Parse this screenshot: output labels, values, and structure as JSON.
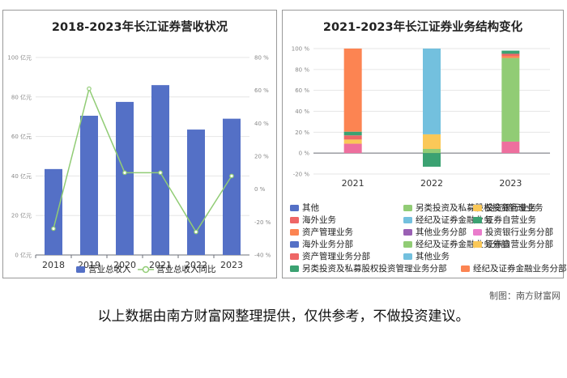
{
  "charts": [
    {
      "title": "2018-2023年长江证券营收状况",
      "type": "bar+line",
      "categories": [
        "2018",
        "2019",
        "2020",
        "2021",
        "2022",
        "2023"
      ],
      "y_ticks": [
        "0 亿元",
        "20 亿元",
        "40 亿元",
        "60 亿元",
        "80 亿元",
        "100 亿元"
      ],
      "y2_ticks": [
        "-40 %",
        "-20 %",
        "0 %",
        "20 %",
        "40 %",
        "60 %",
        "80 %"
      ],
      "ylim": [
        0,
        100
      ],
      "y2lim": [
        -40,
        80
      ],
      "series": [
        {
          "name": "营业总收入",
          "kind": "bar",
          "color": "#5470c6",
          "values": [
            43.5,
            70.5,
            77.5,
            86,
            63.5,
            69
          ]
        },
        {
          "name": "营业总收入同比",
          "kind": "line",
          "color": "#91cc75",
          "values": [
            -24,
            61,
            10,
            10,
            -26,
            8
          ]
        }
      ]
    },
    {
      "title": "2021-2023年长江证券业务结构变化",
      "type": "stacked-bar",
      "categories": [
        "2021",
        "2022",
        "2023"
      ],
      "y_ticks": [
        "-20 %",
        "0 %",
        "20 %",
        "40 %",
        "60 %",
        "80 %",
        "100 %"
      ],
      "ylim": [
        -20,
        100
      ],
      "stacks": [
        [
          {
            "color": "#ee6f9e",
            "value": 9
          },
          {
            "color": "#fac858",
            "value": 4
          },
          {
            "color": "#ee6666",
            "value": 4
          },
          {
            "color": "#3ba272",
            "value": 3.5
          },
          {
            "color": "#fc8452",
            "value": 79.5
          }
        ],
        [
          {
            "color": "#91cc75",
            "value": 4
          },
          {
            "color": "#fac858",
            "value": 14
          },
          {
            "color": "#73c0de",
            "value": 82
          },
          {
            "color": "#3ba272",
            "value": -13
          }
        ],
        [
          {
            "color": "#ee6f9e",
            "value": 11
          },
          {
            "color": "#91cc75",
            "value": 80
          },
          {
            "color": "#fc8452",
            "value": 2
          },
          {
            "color": "#ee6666",
            "value": 2
          },
          {
            "color": "#3ba272",
            "value": 3
          }
        ]
      ],
      "legend": [
        {
          "name": "其他",
          "color": "#5470c6"
        },
        {
          "name": "另类投资及私募股权投资管理业务",
          "color": "#91cc75"
        },
        {
          "name": "投资银行业务",
          "color": "#fac858"
        },
        {
          "name": "海外业务",
          "color": "#ee6666"
        },
        {
          "name": "经纪及证券金融业务",
          "color": "#73c0de"
        },
        {
          "name": "证券自营业务",
          "color": "#3ba272"
        },
        {
          "name": "资产管理业务",
          "color": "#fc8452"
        },
        {
          "name": "其他业务分部",
          "color": "#9a60b4"
        },
        {
          "name": "投资银行业务分部",
          "color": "#ea7ccc"
        },
        {
          "name": "海外业务分部",
          "color": "#5470c6"
        },
        {
          "name": "经纪及证券金融业务分部",
          "color": "#91cc75"
        },
        {
          "name": "证券自营业务分部",
          "color": "#fac858"
        },
        {
          "name": "资产管理业务分部",
          "color": "#ee6666"
        },
        {
          "name": "其他业务",
          "color": "#73c0de"
        },
        {
          "name": "另类投资及私募股权投资管理业务分部",
          "color": "#3ba272"
        },
        {
          "name": "经纪及证券金融业务分部",
          "color": "#fc8452"
        }
      ]
    }
  ],
  "credit": "制图：南方财富网",
  "disclaimer": "以上数据由南方财富网整理提供，仅供参考，不做投资建议。"
}
